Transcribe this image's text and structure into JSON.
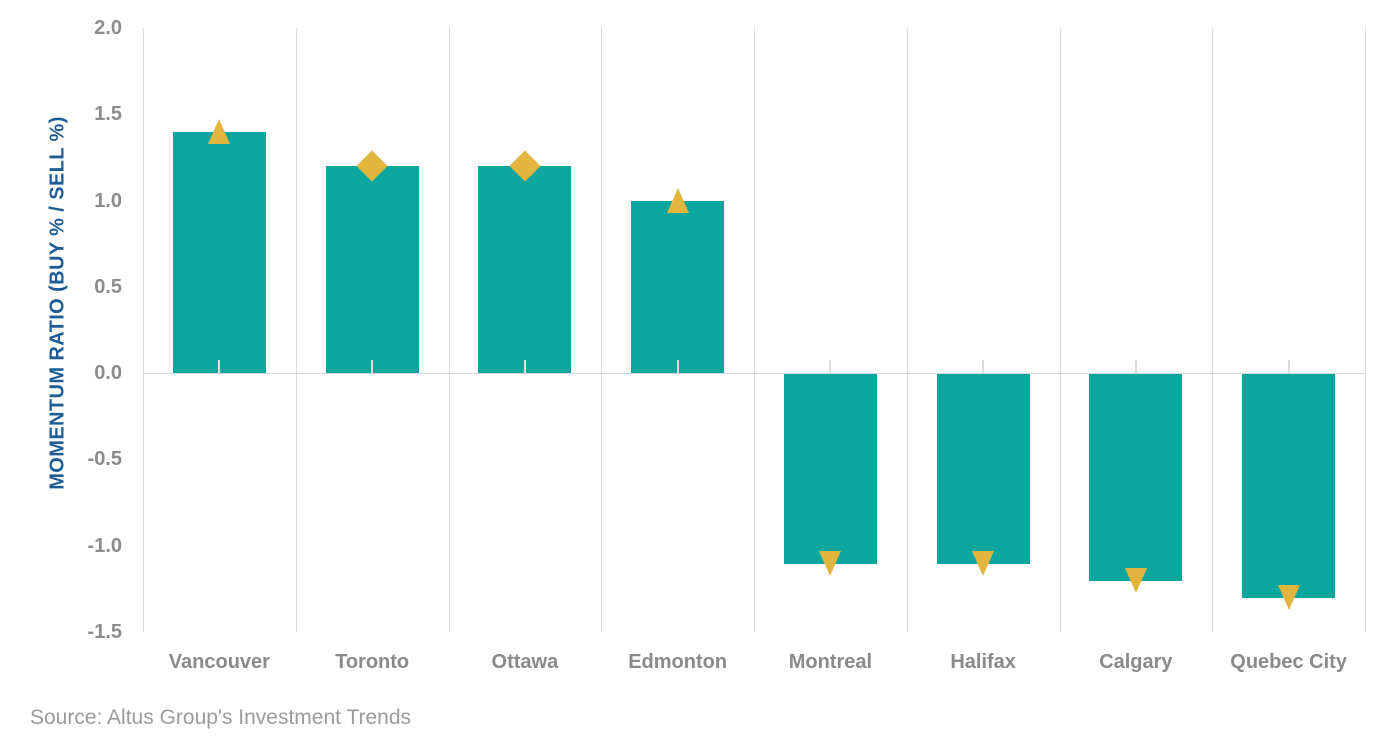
{
  "source": "Source: Altus Group's Investment Trends",
  "colors": {
    "bar": "#0BA79E",
    "marker": "#E2B53E",
    "axis_title_text": "#1E5C94",
    "tick_text": "#8C8C8C",
    "category_text": "#8A8A8A",
    "source_text": "#9B9B9B",
    "gridline": "#DBDBDB",
    "zero_line": "#D6D6D6",
    "center_tick": "#DCDCDC"
  },
  "chart_data": {
    "type": "bar",
    "title": "",
    "xlabel": "",
    "ylabel": "MOMENTUM RATIO (BUY % / SELL %)",
    "categories": [
      "Vancouver",
      "Toronto",
      "Ottawa",
      "Edmonton",
      "Montreal",
      "Halifax",
      "Calgary",
      "Quebec City"
    ],
    "values": [
      1.4,
      1.2,
      1.2,
      1.0,
      -1.1,
      -1.1,
      -1.2,
      -1.3
    ],
    "markers": [
      "triangle-up",
      "diamond",
      "diamond",
      "triangle-up",
      "triangle-down",
      "triangle-down",
      "triangle-down",
      "triangle-down"
    ],
    "ylim": [
      -1.5,
      2.0
    ],
    "yticks": [
      2.0,
      1.5,
      1.0,
      0.5,
      0.0,
      -0.5,
      -1.0,
      -1.5
    ],
    "ytick_labels": [
      "2.0",
      "1.5",
      "1.0",
      "0.5",
      "0.0",
      "-0.5",
      "-1.0",
      "-1.5"
    ],
    "grid": "vertical-category-boundaries",
    "legend": "none"
  }
}
